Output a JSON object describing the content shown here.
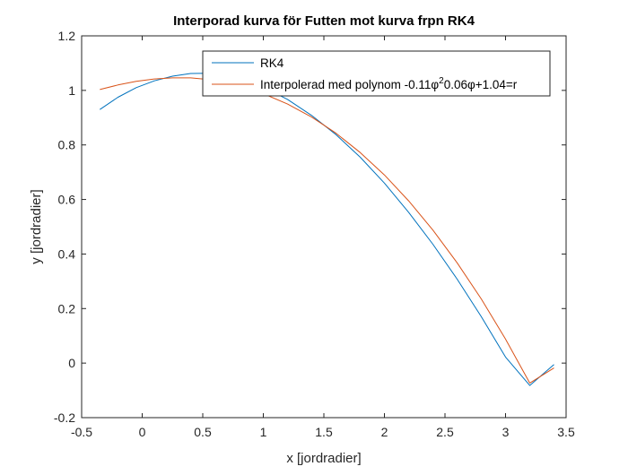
{
  "chart_data": {
    "type": "line",
    "title": "Interporad kurva för Futten mot kurva frpn RK4",
    "xlabel": "x [jordradier]",
    "ylabel": "y [jordradier]",
    "xlim": [
      -0.5,
      3.5
    ],
    "ylim": [
      -0.2,
      1.2
    ],
    "xticks": [
      -0.5,
      0,
      0.5,
      1,
      1.5,
      2,
      2.5,
      3,
      3.5
    ],
    "xtick_labels": [
      "-0.5",
      "0",
      "0.5",
      "1",
      "1.5",
      "2",
      "2.5",
      "3",
      "3.5"
    ],
    "yticks": [
      -0.2,
      0,
      0.2,
      0.4,
      0.6,
      0.8,
      1,
      1.2
    ],
    "ytick_labels": [
      "-0.2",
      "0",
      "0.2",
      "0.4",
      "0.6",
      "0.8",
      "1",
      "1.2"
    ],
    "grid": false,
    "legend_location": "top-right",
    "series": [
      {
        "name": "RK4",
        "legend_label": "RK4",
        "color": "#0072BD",
        "x": [
          -0.35,
          -0.2,
          -0.05,
          0.1,
          0.25,
          0.4,
          0.55,
          0.7,
          0.85,
          1.0,
          1.2,
          1.4,
          1.6,
          1.8,
          2.0,
          2.2,
          2.4,
          2.6,
          2.8,
          3.0,
          3.2,
          3.4
        ],
        "y": [
          0.93,
          0.975,
          1.01,
          1.035,
          1.052,
          1.062,
          1.063,
          1.055,
          1.038,
          1.012,
          0.967,
          0.908,
          0.838,
          0.755,
          0.66,
          0.553,
          0.436,
          0.308,
          0.17,
          0.022,
          -0.082,
          -0.005
        ]
      },
      {
        "name": "Interpolerad",
        "legend_label": "Interpolerad med polynom -0.11φ",
        "legend_sup": "2",
        "legend_tail": "0.06φ+1.04=r",
        "color": "#D95319",
        "x": [
          -0.35,
          -0.2,
          -0.05,
          0.1,
          0.25,
          0.4,
          0.55,
          0.7,
          0.85,
          1.0,
          1.2,
          1.4,
          1.6,
          1.8,
          2.0,
          2.2,
          2.4,
          2.6,
          2.8,
          3.0,
          3.2,
          3.4
        ],
        "y": [
          1.003,
          1.02,
          1.033,
          1.042,
          1.046,
          1.046,
          1.04,
          1.028,
          1.01,
          0.988,
          0.95,
          0.902,
          0.843,
          0.772,
          0.69,
          0.595,
          0.488,
          0.368,
          0.235,
          0.088,
          -0.073,
          -0.018
        ]
      }
    ]
  }
}
